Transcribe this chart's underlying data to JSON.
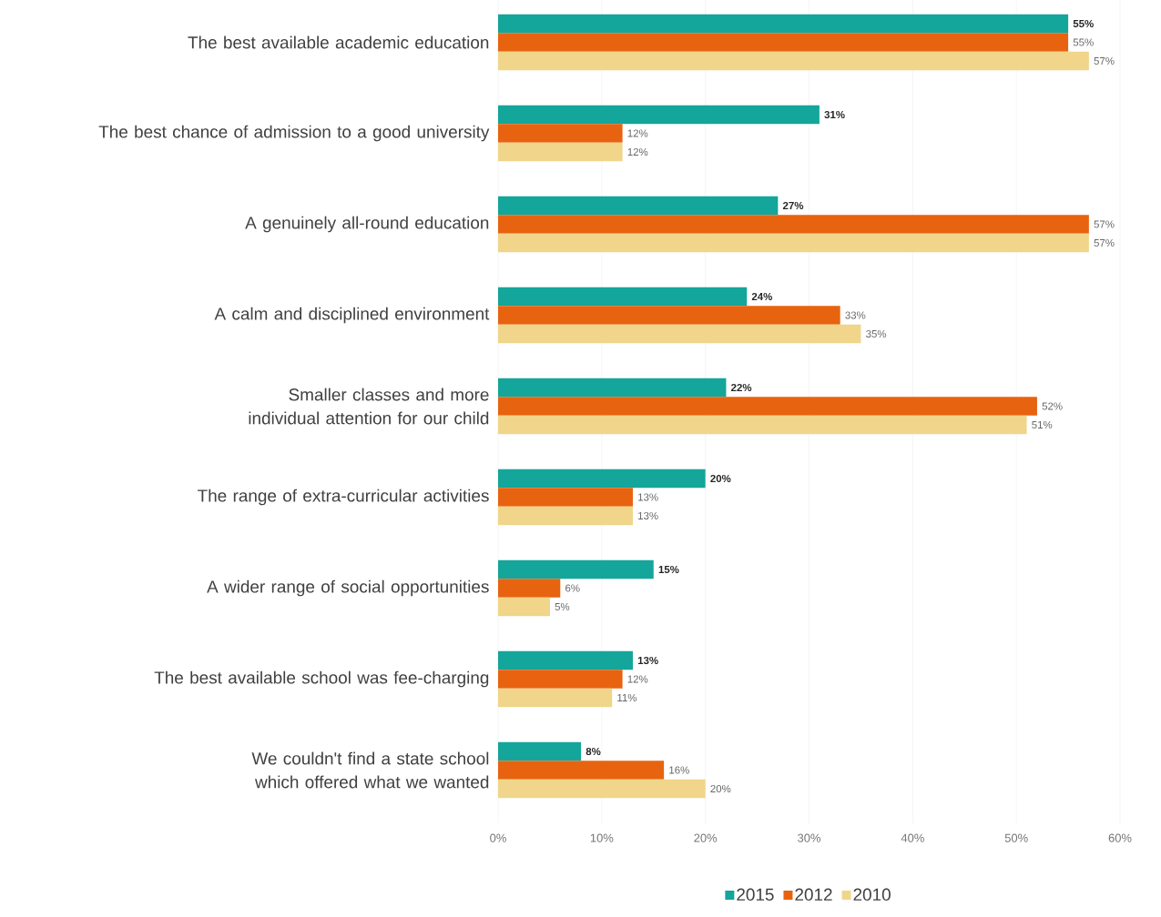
{
  "chart_data": {
    "type": "bar",
    "orientation": "horizontal",
    "categories": [
      "The best available academic education",
      "The best chance of admission to a good university",
      "A genuinely all-round education",
      "A calm and disciplined environment",
      "Smaller classes and more individual attention for our child",
      "The range of extra-curricular activities",
      "A wider range of social  opportunities",
      "The best available school was fee-charging",
      "We couldn't find a state school which offered what we wanted"
    ],
    "series": [
      {
        "name": "2015",
        "color": "#14a59b",
        "values": [
          55,
          31,
          27,
          24,
          22,
          20,
          15,
          13,
          8
        ],
        "value_labels": [
          "55%",
          "31%",
          "27%",
          "24%",
          "22%",
          "20%",
          "15%",
          "13%",
          "8%"
        ]
      },
      {
        "name": "2012",
        "color": "#e8630f",
        "values": [
          55,
          12,
          57,
          33,
          52,
          13,
          6,
          12,
          16
        ],
        "value_labels": [
          "55%",
          "12%",
          "57%",
          "33%",
          "52%",
          "13%",
          "6%",
          "12%",
          "16%"
        ]
      },
      {
        "name": "2010",
        "color": "#f0d58a",
        "values": [
          57,
          12,
          57,
          35,
          51,
          13,
          5,
          11,
          20
        ],
        "value_labels": [
          "57%",
          "12%",
          "57%",
          "35%",
          "51%",
          "13%",
          "5%",
          "11%",
          "20%"
        ]
      }
    ],
    "xlim": [
      0,
      60
    ],
    "xticks": [
      {
        "value": 0,
        "label": "0%"
      },
      {
        "value": 10,
        "label": "10%"
      },
      {
        "value": 20,
        "label": "20%"
      },
      {
        "value": 30,
        "label": "30%"
      },
      {
        "value": 40,
        "label": "40%"
      },
      {
        "value": 50,
        "label": "50%"
      },
      {
        "value": 60,
        "label": "60%"
      }
    ],
    "grid": "x",
    "legend": "bottom"
  }
}
